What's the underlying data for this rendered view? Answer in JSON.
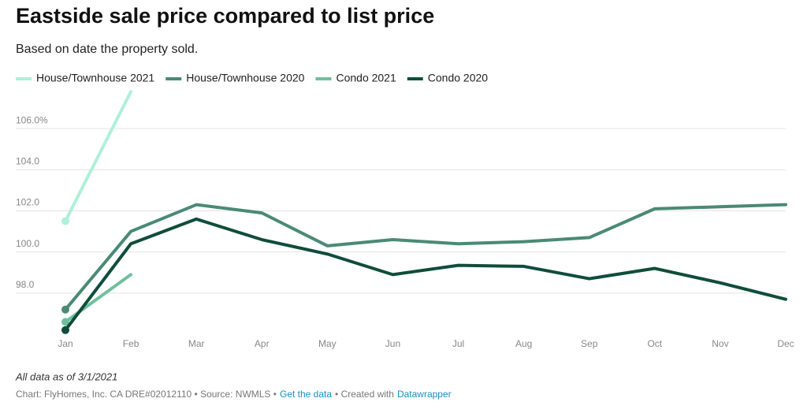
{
  "chart_data": {
    "type": "line",
    "title": "Eastside sale price compared to list price",
    "subtitle": "Based on date the property sold.",
    "categories": [
      "Jan",
      "Feb",
      "Mar",
      "Apr",
      "May",
      "Jun",
      "Jul",
      "Aug",
      "Sep",
      "Oct",
      "Nov",
      "Dec"
    ],
    "series": [
      {
        "name": "House/Townhouse 2021",
        "color": "#aef0d8",
        "values": [
          101.5,
          107.8,
          null,
          null,
          null,
          null,
          null,
          null,
          null,
          null,
          null,
          null
        ]
      },
      {
        "name": "House/Townhouse 2020",
        "color": "#4a8a73",
        "values": [
          97.2,
          101.0,
          102.3,
          101.9,
          100.3,
          100.6,
          100.4,
          100.5,
          100.7,
          102.1,
          102.2,
          102.3
        ]
      },
      {
        "name": "Condo 2021",
        "color": "#6fbf9f",
        "values": [
          96.6,
          98.9,
          null,
          null,
          null,
          null,
          null,
          null,
          null,
          null,
          null,
          null
        ]
      },
      {
        "name": "Condo 2020",
        "color": "#0f4d3a",
        "values": [
          96.2,
          100.4,
          101.6,
          100.6,
          99.9,
          98.9,
          99.35,
          99.3,
          98.7,
          99.2,
          98.5,
          97.7
        ]
      }
    ],
    "ylim": [
      96.0,
      108.0
    ],
    "yticks": [
      {
        "value": 98,
        "label": "98.0"
      },
      {
        "value": 100,
        "label": "100.0"
      },
      {
        "value": 102,
        "label": "102.0"
      },
      {
        "value": 104,
        "label": "104.0"
      },
      {
        "value": 106,
        "label": "106.0%"
      }
    ],
    "grid": true,
    "note": "All data as of 3/1/2021",
    "credit": [
      "Chart: FlyHomes, Inc. CA DRE#02012110 • Source: NWMLS •",
      "Get the data",
      "• Created with",
      "Datawrapper"
    ]
  }
}
